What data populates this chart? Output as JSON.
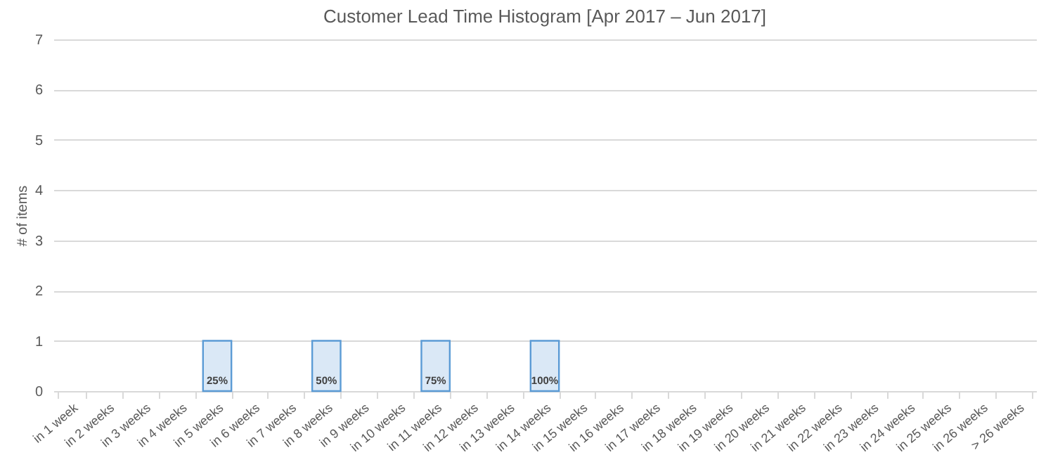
{
  "chart_data": {
    "type": "bar",
    "title": "Customer Lead Time Histogram [Apr 2017 – Jun 2017]",
    "ylabel": "# of items",
    "categories": [
      "in 1 week",
      "in 2 weeks",
      "in 3 weeks",
      "in 4 weeks",
      "in 5 weeks",
      "in 6 weeks",
      "in 7 weeks",
      "in 8 weeks",
      "in 9 weeks",
      "in 10 weeks",
      "in 11 weeks",
      "in 12 weeks",
      "in 13 weeks",
      "in 14 weeks",
      "in 15 weeks",
      "in 16 weeks",
      "in 17 weeks",
      "in 18 weeks",
      "in 19 weeks",
      "in 20 weeks",
      "in 21 weeks",
      "in 22 weeks",
      "in 23 weeks",
      "in 24 weeks",
      "in 25 weeks",
      "in 26 weeks",
      "> 26 weeks"
    ],
    "values": [
      0,
      0,
      0,
      0,
      1,
      0,
      0,
      1,
      0,
      0,
      1,
      0,
      0,
      1,
      0,
      0,
      0,
      0,
      0,
      0,
      0,
      0,
      0,
      0,
      0,
      0,
      0
    ],
    "annotations": [
      {
        "text": "25%",
        "x": "in 5 weeks",
        "y": 0
      },
      {
        "text": "50%",
        "x": "in 8 weeks",
        "y": 0
      },
      {
        "text": "75%",
        "x": "in 11 weeks",
        "y": 0
      },
      {
        "text": "100%",
        "x": "in 14 weeks",
        "y": 0
      }
    ],
    "color": "#dae8f6",
    "ylim": [
      0,
      7
    ],
    "yticks": [
      0,
      1,
      2,
      3,
      4,
      5,
      6,
      7
    ],
    "grid": "y"
  }
}
